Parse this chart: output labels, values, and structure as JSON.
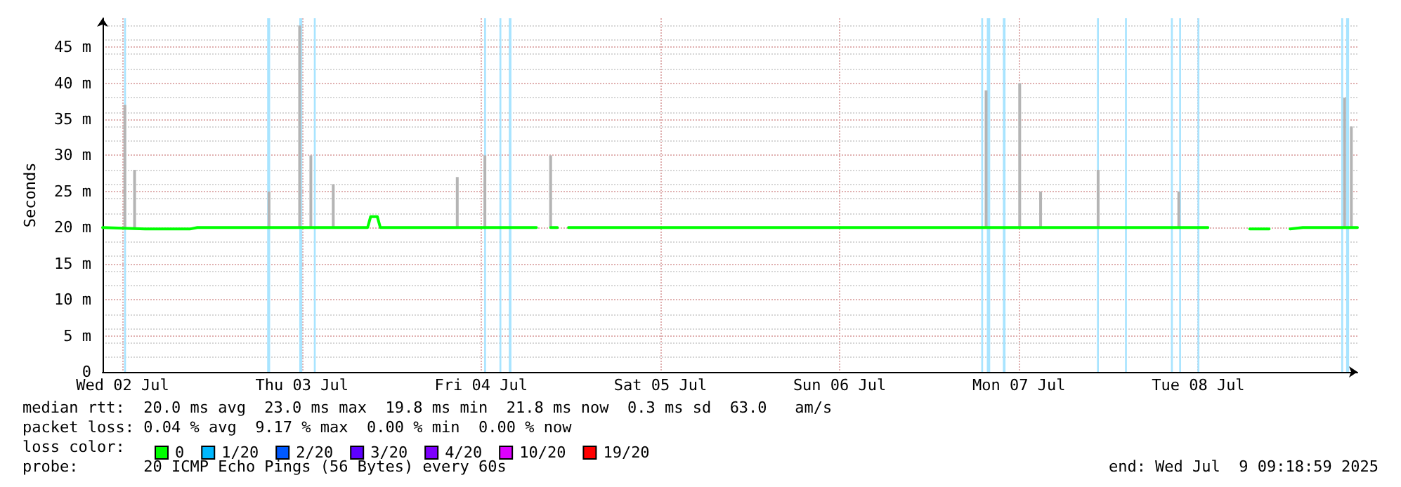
{
  "chart_data": {
    "type": "line",
    "ylabel": "Seconds",
    "legend_title": "loss color:",
    "legend": "bottom left",
    "grid": true,
    "marker": "none",
    "line_style": "solid",
    "xlim": [
      "2025-07-02T09:19",
      "2025-07-09T09:19"
    ],
    "xticks": [
      {
        "value": "2025-07-02T12:00",
        "label": "Wed 02 Jul"
      },
      {
        "value": "2025-07-03T12:00",
        "label": "Thu 03 Jul"
      },
      {
        "value": "2025-07-04T12:00",
        "label": "Fri 04 Jul"
      },
      {
        "value": "2025-07-05T12:00",
        "label": "Sat 05 Jul"
      },
      {
        "value": "2025-07-06T12:00",
        "label": "Sun 06 Jul"
      },
      {
        "value": "2025-07-07T12:00",
        "label": "Mon 07 Jul"
      },
      {
        "value": "2025-07-08T12:00",
        "label": "Tue 08 Jul"
      }
    ],
    "ylim": [
      0,
      49
    ],
    "yticks": [
      0,
      {
        "value": 5,
        "label": "5 m"
      },
      {
        "value": 10,
        "label": "10 m"
      },
      {
        "value": 15,
        "label": "15 m"
      },
      {
        "value": 20,
        "label": "20 m"
      },
      {
        "value": 25,
        "label": "25 m"
      },
      {
        "value": 30,
        "label": "30 m"
      },
      {
        "value": 35,
        "label": "35 m"
      },
      {
        "value": 40,
        "label": "40 m"
      },
      {
        "value": 45,
        "label": "45 m"
      }
    ],
    "series": [
      {
        "type": "bar",
        "color": "#b4b4b4",
        "x": [
          "2025-07-02T12:18",
          "2025-07-02T13:36",
          "2025-07-03T07:36",
          "2025-07-03T11:42",
          "2025-07-03T13:12",
          "2025-07-03T16:12",
          "2025-07-04T08:48",
          "2025-07-04T12:30",
          "2025-07-04T21:18",
          "2025-07-07T07:36",
          "2025-07-07T12:06",
          "2025-07-07T14:54",
          "2025-07-07T22:36",
          "2025-07-08T09:24",
          "2025-07-09T07:36",
          "2025-07-09T08:30"
        ],
        "base": [
          20,
          20,
          20,
          20,
          20,
          20,
          20,
          20,
          20,
          20,
          20,
          20,
          20,
          20,
          20,
          20
        ],
        "values": [
          17,
          8,
          5,
          28,
          10,
          6,
          7,
          10,
          10,
          19,
          20,
          5,
          8,
          5,
          18,
          14
        ]
      },
      {
        "name": "0",
        "color": "#00ff00",
        "x": [
          "2025-07-02T09:19",
          "2025-07-02T15:00",
          "2025-07-02T21:00",
          "2025-07-02T22:00",
          "2025-07-03T20:48",
          "2025-07-03T21:12",
          "2025-07-03T22:06",
          "2025-07-03T22:30",
          "2025-07-04T19:24",
          "2025-07-04T19:36",
          "2025-07-04T21:18",
          "2025-07-04T22:12",
          "2025-07-04T22:24",
          "2025-07-04T23:42",
          "2025-07-06T04:00",
          "2025-07-07T10:00",
          "2025-07-08T13:18",
          "2025-07-08T13:30",
          "2025-07-08T18:54",
          "2025-07-08T21:30",
          "2025-07-08T21:48",
          "2025-07-09T00:18",
          "2025-07-09T02:00",
          "2025-07-09T09:19"
        ],
        "values": [
          20,
          19.8,
          19.8,
          20,
          20,
          21.5,
          21.5,
          20,
          20,
          null,
          20,
          20,
          null,
          20,
          20,
          20,
          20,
          null,
          19.8,
          19.8,
          null,
          19.8,
          20,
          20
        ]
      },
      {
        "name": "1/20",
        "color": "#00b8ff"
      },
      {
        "name": "2/20",
        "color": "#0059ff"
      },
      {
        "name": "3/20",
        "color": "#5e00ff"
      },
      {
        "name": "4/20",
        "color": "#7e00ff"
      },
      {
        "name": "10/20",
        "color": "#dd00ff"
      },
      {
        "name": "19/20",
        "color": "#ff0000"
      }
    ],
    "bands": [
      {
        "axis": "x",
        "from": "2025-07-02T12:12",
        "to": "2025-07-02T12:27",
        "color": "#a8e4ff"
      },
      {
        "axis": "x",
        "from": "2025-07-03T07:21",
        "to": "2025-07-03T07:45",
        "color": "#a8e4ff"
      },
      {
        "axis": "x",
        "from": "2025-07-03T11:39",
        "to": "2025-07-03T12:03",
        "color": "#a8e4ff"
      },
      {
        "axis": "x",
        "from": "2025-07-03T13:36",
        "to": "2025-07-03T13:51",
        "color": "#a8e4ff"
      },
      {
        "axis": "x",
        "from": "2025-07-04T12:24",
        "to": "2025-07-04T12:39",
        "color": "#a8e4ff"
      },
      {
        "axis": "x",
        "from": "2025-07-04T14:27",
        "to": "2025-07-04T14:42",
        "color": "#a8e4ff"
      },
      {
        "axis": "x",
        "from": "2025-07-04T15:42",
        "to": "2025-07-04T16:03",
        "color": "#a8e4ff"
      },
      {
        "axis": "x",
        "from": "2025-07-07T06:57",
        "to": "2025-07-07T07:12",
        "color": "#a8e4ff"
      },
      {
        "axis": "x",
        "from": "2025-07-07T07:42",
        "to": "2025-07-07T08:09",
        "color": "#a8e4ff"
      },
      {
        "axis": "x",
        "from": "2025-07-07T09:51",
        "to": "2025-07-07T10:12",
        "color": "#a8e4ff"
      },
      {
        "axis": "x",
        "from": "2025-07-07T22:27",
        "to": "2025-07-07T22:42",
        "color": "#a8e4ff"
      },
      {
        "axis": "x",
        "from": "2025-07-08T02:12",
        "to": "2025-07-08T02:27",
        "color": "#a8e4ff"
      },
      {
        "axis": "x",
        "from": "2025-07-08T08:21",
        "to": "2025-07-08T08:36",
        "color": "#a8e4ff"
      },
      {
        "axis": "x",
        "from": "2025-07-08T09:27",
        "to": "2025-07-08T09:42",
        "color": "#a8e4ff"
      },
      {
        "axis": "x",
        "from": "2025-07-08T11:54",
        "to": "2025-07-08T12:09",
        "color": "#a8e4ff"
      },
      {
        "axis": "x",
        "from": "2025-07-09T07:09",
        "to": "2025-07-09T07:24",
        "color": "#a8e4ff"
      },
      {
        "axis": "x",
        "from": "2025-07-09T07:48",
        "to": "2025-07-09T08:12",
        "color": "#a8e4ff"
      }
    ],
    "annotations": [
      "median rtt:  20.0 ms avg  23.0 ms max  19.8 ms min  21.8 ms now  0.3 ms sd  63.0   am/s",
      "packet loss: 0.04 % avg  9.17 % max  0.00 % min  0.00 % now",
      "probe:       20 ICMP Echo Pings (56 Bytes) every 60s",
      "end: Wed Jul  9 09:18:59 2025"
    ]
  }
}
